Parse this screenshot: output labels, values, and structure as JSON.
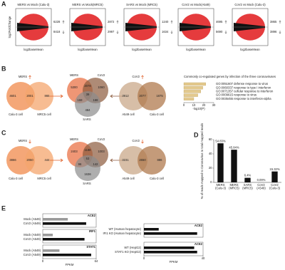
{
  "figure": {
    "panel_a": {
      "letter": "A",
      "y_label": "log2FoldChange",
      "x_label": "log2baseMean",
      "plots": [
        {
          "title": "MERS vs Mock (Calu-3)",
          "up": 6228,
          "down": 8418
        },
        {
          "title": "MERS vs Mock(MRC5)",
          "up": 2872,
          "down": 2997
        },
        {
          "title": "SARS vs Mock (MRC5)",
          "up": 1240,
          "down": 1634
        },
        {
          "title": "CoV2 vs Mock(A549)",
          "up": 4695,
          "down": 5690
        },
        {
          "title": "CoV2 vs Mock (Calu-3)",
          "up": 3865,
          "down": 3896
        }
      ]
    },
    "panel_b": {
      "letter": "B",
      "venn_left": {
        "title": "MERS",
        "sets": [
          "Calu-3 cell",
          "MRC5 cell"
        ],
        "counts": [
          4601,
          2001,
          865
        ]
      },
      "venn_middle": {
        "titles": [
          "MERS",
          "CoV2",
          "SARS"
        ],
        "counts": [
          5300,
          1060,
          484,
          2078,
          159,
          168,
          39
        ]
      },
      "venn_right": {
        "title": "CoV2",
        "sets": [
          "A549 cell",
          "Calu-3 cell"
        ],
        "counts": [
          3912,
          2077,
          1875
        ]
      },
      "go_chart": {
        "type": "bar",
        "title": "Commonly co-regulated genes by infection of the three coronaviruses",
        "x_label": "-log10(P)",
        "categories": [
          "GO:0051607 defense response to virus",
          "GO:0060337 response to type I interferon",
          "GO:0071357 cellular response to interferon",
          "GO:0009615 response to virus",
          "GO:0035455 response to interferon-alpha"
        ],
        "values": [
          22,
          19,
          17,
          14,
          10
        ],
        "color": "#e3c98e",
        "xlim": [
          0,
          30
        ],
        "xticks": [
          0,
          10,
          20,
          30
        ]
      }
    },
    "panel_c": {
      "letter": "C",
      "venn_left": {
        "title": "MERS",
        "sets": [
          "Calu-3 cell",
          "MRC5 cell"
        ],
        "counts": [
          3866,
          2050,
          444
        ]
      },
      "venn_middle": {
        "titles": [
          "MERS",
          "CoV2",
          "SARS"
        ],
        "counts": [
          2403,
          1003,
          1636,
          1188,
          96,
          142,
          53
        ]
      },
      "venn_right": {
        "title": "CoV2",
        "sets": [
          "A549 cell",
          "Calu-3 cell"
        ],
        "counts": [
          3231,
          2650,
          886
        ]
      }
    },
    "panel_d": {
      "letter": "D",
      "type": "bar",
      "y_label": "% of reads mapped to Coronavirus to total mapped reads",
      "categories": [
        "MERS",
        "MERS",
        "SARS",
        "CoV2",
        "CoV2"
      ],
      "cells": [
        "(Calu-3)",
        "(MRC5)",
        "(MRC5)",
        "(A549)",
        "(Calu-3)"
      ],
      "values": [
        54.83,
        45.84,
        6.4,
        0.09,
        15.32
      ],
      "value_labels": [
        "54.83%",
        "45.84%",
        "6.4%",
        "0.09%",
        "15.32%"
      ],
      "color": "#111111",
      "ylim": [
        0,
        60
      ],
      "yticks": [
        0,
        20,
        40,
        60
      ]
    },
    "panel_e": {
      "letter": "E",
      "left": {
        "x_label": "FPKM",
        "xlim": [
          0,
          64
        ],
        "xticks": [
          0,
          64
        ],
        "groups": [
          {
            "gene": "ACE2",
            "labels": [
              "Mock (A549)",
              "CoV2 (A549)"
            ],
            "values": [
              30,
              52
            ]
          },
          {
            "gene": "IRF1",
            "labels": [
              "Mock (A549)",
              "CoV2 (A549)"
            ],
            "values": [
              12,
              50
            ]
          },
          {
            "gene": "STAT1",
            "labels": [
              "Mock (A549)",
              "CoV2 (A549)"
            ],
            "values": [
              20,
              58
            ]
          }
        ]
      },
      "right": {
        "x_label": "FPKM",
        "xlim": [
          0,
          40
        ],
        "xticks": [
          0,
          40
        ],
        "groups": [
          {
            "gene": "ACE2",
            "labels": [
              "WT (Human hepatocyte)",
              "IFI1 KO (Human hepatocyte)"
            ],
            "values": [
              10,
              36
            ]
          },
          {
            "gene": "ACE2",
            "labels": [
              "WT (HepG2)",
              "STAT1 KO (HepG2)"
            ],
            "values": [
              34,
              36
            ]
          }
        ]
      }
    }
  }
}
